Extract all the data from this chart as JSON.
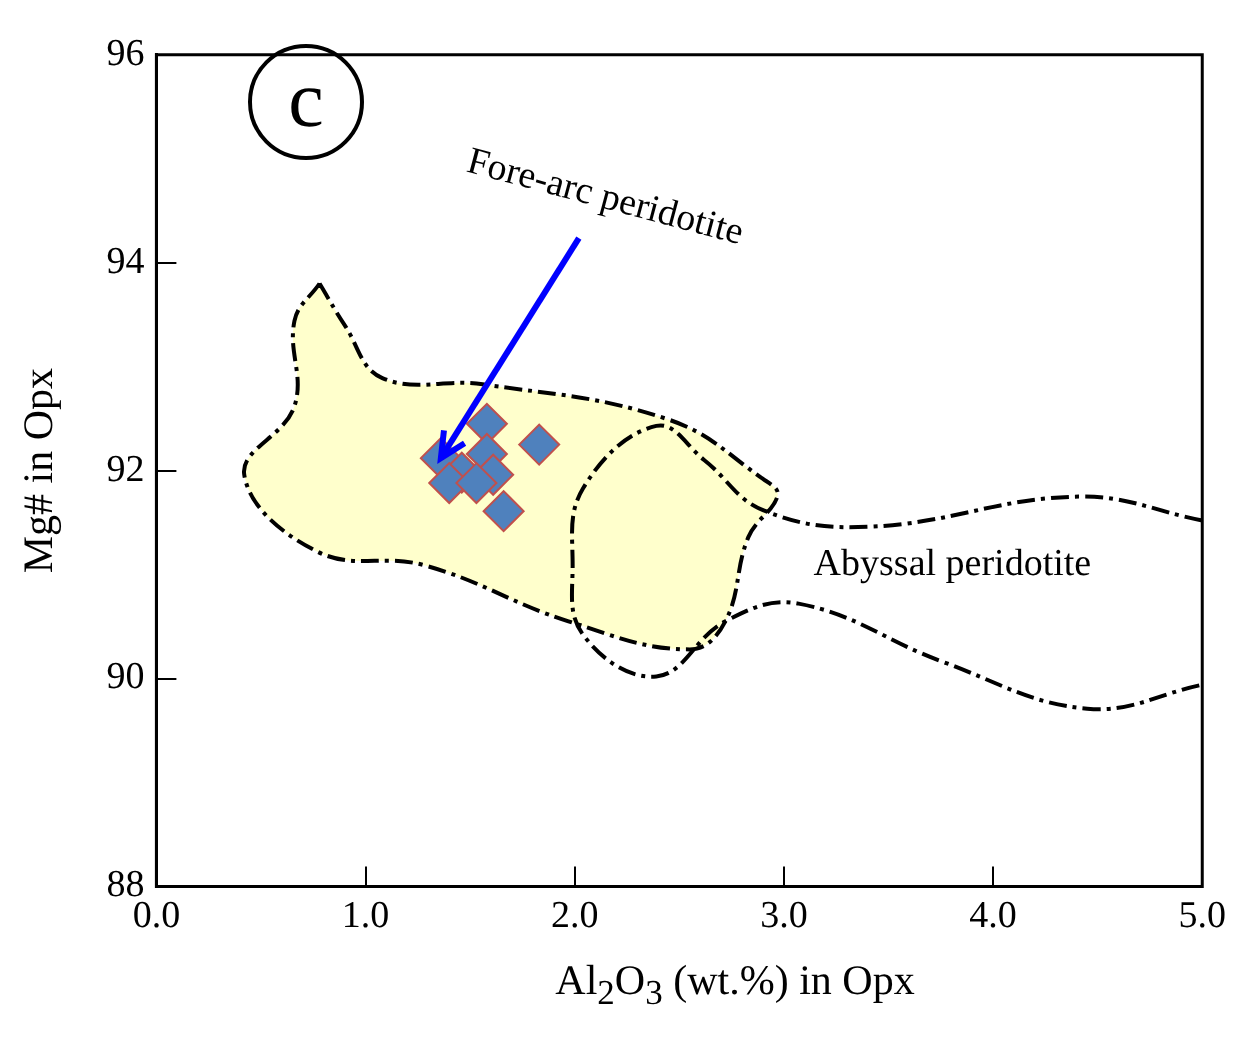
{
  "chart_data": {
    "type": "scatter",
    "xlabel": "Al$_{2}$O$_{3}$ (wt.%)  in Opx",
    "ylabel": "Mg# in Opx",
    "xlim": [
      0,
      5
    ],
    "xticks": [
      {
        "value": 0,
        "label": "0.0"
      },
      {
        "value": 1,
        "label": "1.0"
      },
      {
        "value": 2,
        "label": "2.0"
      },
      {
        "value": 3,
        "label": "3.0"
      },
      {
        "value": 4,
        "label": "4.0"
      },
      {
        "value": 5,
        "label": "5.0"
      }
    ],
    "ylim": [
      88,
      96
    ],
    "yticks": [
      88,
      90,
      92,
      94,
      96
    ],
    "grid": false,
    "legend": false,
    "series": [
      {
        "type": "area",
        "color": "#ffffcc",
        "line_style": "dashed",
        "marker": "none",
        "x": [
          0.78,
          0.9,
          1.08,
          1.56,
          2.45,
          2.9,
          2.97,
          2.83,
          2.72,
          2.55,
          1.97,
          1.28,
          0.77,
          0.42,
          0.66,
          0.66,
          0.78
        ],
        "values": [
          93.8,
          93.4,
          92.89,
          92.83,
          92.49,
          91.92,
          91.76,
          91.36,
          90.55,
          90.28,
          90.55,
          91.09,
          91.22,
          91.96,
          92.62,
          93.44,
          93.8
        ]
      },
      {
        "type": "line",
        "color": "#000000",
        "line_style": "dashed",
        "marker": "none",
        "x": [
          5.0,
          4.41,
          3.41,
          2.9,
          2.62,
          2.39,
          2.04,
          1.99,
          2.04,
          2.39,
          2.72,
          3.07,
          3.76,
          4.45,
          5.0
        ],
        "values": [
          91.52,
          91.75,
          91.46,
          91.62,
          92.1,
          92.43,
          91.83,
          91.09,
          90.42,
          90.02,
          90.55,
          90.72,
          90.16,
          89.71,
          89.94
        ]
      },
      {
        "color": "#4f81bd",
        "marker": "diamond",
        "x": [
          1.83,
          1.66,
          1.58,
          1.36,
          1.46,
          1.58,
          1.4,
          1.61,
          1.53
        ],
        "values": [
          92.25,
          91.61,
          92.45,
          92.12,
          91.98,
          92.16,
          91.88,
          91.96,
          91.88
        ]
      }
    ],
    "annotations": [
      "c",
      {
        "text": "Fore-arc peridotite",
        "x": 1.36,
        "y": 92.12
      },
      "Abyssal peridotite"
    ]
  }
}
